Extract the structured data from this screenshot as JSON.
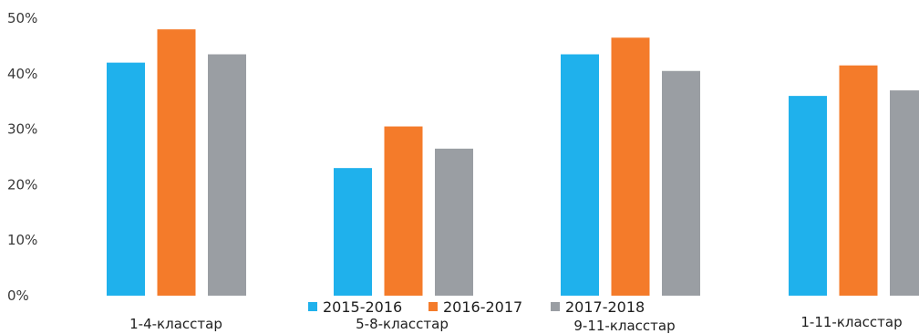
{
  "chart_data": {
    "type": "bar",
    "categories": [
      "1-4-класстар",
      "5-8-класстар",
      "9-11-класстар",
      "1-11-класстар"
    ],
    "series": [
      {
        "name": "2015-2016",
        "values": [
          42,
          23,
          43.5,
          36
        ],
        "color": "#1fb1ec"
      },
      {
        "name": "2016-2017",
        "values": [
          48,
          30.5,
          46.5,
          41.5
        ],
        "color": "#f47b2a"
      },
      {
        "name": "2017-2018",
        "values": [
          43.5,
          26.5,
          40.5,
          37
        ],
        "color": "#9a9ea3"
      }
    ],
    "y_ticks": [
      "0%",
      "10%",
      "20%",
      "30%",
      "40%",
      "50%"
    ],
    "ylim": [
      0,
      50
    ],
    "grid": false,
    "legend": "bottom-center",
    "title": "",
    "xlabel": "",
    "ylabel": ""
  }
}
